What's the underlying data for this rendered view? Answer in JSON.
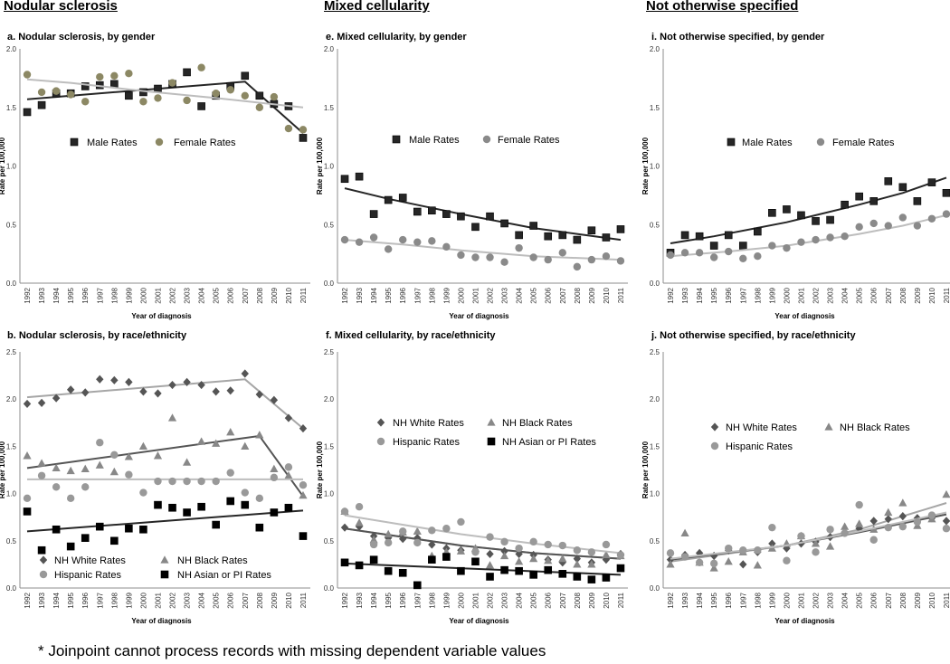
{
  "section_titles": [
    "Nodular sclerosis",
    "Mixed cellularity",
    "Not otherwise specified"
  ],
  "footnote": "* Joinpoint cannot process records with missing dependent variable values",
  "chart_data": [
    {
      "id": "a",
      "type": "scatter",
      "title": "a. Nodular sclerosis, by gender",
      "xlabel": "Year of diagnosis",
      "ylabel": "Rate per 100,000",
      "ylim": [
        0,
        2.0
      ],
      "yticks": [
        "0.0",
        "0.5",
        "1.0",
        "1.5",
        "2.0"
      ],
      "x": [
        1992,
        1993,
        1994,
        1995,
        1996,
        1997,
        1998,
        1999,
        2000,
        2001,
        2002,
        2003,
        2004,
        2005,
        2006,
        2007,
        2008,
        2009,
        2010,
        2011
      ],
      "series": [
        {
          "name": "Male Rates",
          "marker": "square",
          "color": "#262626",
          "values": [
            1.46,
            1.52,
            1.62,
            1.62,
            1.68,
            1.69,
            1.7,
            1.6,
            1.63,
            1.66,
            1.7,
            1.8,
            1.51,
            1.6,
            1.68,
            1.77,
            1.6,
            1.53,
            1.51,
            1.24
          ],
          "trend": [
            [
              1992,
              1.57
            ],
            [
              2007,
              1.72
            ],
            [
              2011,
              1.28
            ]
          ]
        },
        {
          "name": "Female Rates",
          "marker": "circle",
          "color": "#8c8864",
          "values": [
            1.78,
            1.63,
            1.64,
            1.61,
            1.55,
            1.76,
            1.77,
            1.79,
            1.55,
            1.58,
            1.71,
            1.56,
            1.84,
            1.62,
            1.65,
            1.6,
            1.5,
            1.59,
            1.32,
            1.31
          ],
          "trend": [
            [
              1992,
              1.74
            ],
            [
              1995,
              1.71
            ],
            [
              2000,
              1.64
            ],
            [
              2005,
              1.58
            ],
            [
              2011,
              1.5
            ]
          ]
        }
      ]
    },
    {
      "id": "b",
      "type": "scatter",
      "title": "b. Nodular sclerosis, by race/ethnicity",
      "xlabel": "Year of diagnosis",
      "ylabel": "Rate per 100,000",
      "ylim": [
        0,
        2.5
      ],
      "yticks": [
        "0.0",
        "0.5",
        "1.0",
        "1.5",
        "2.0",
        "2.5"
      ],
      "x": [
        1992,
        1993,
        1994,
        1995,
        1996,
        1997,
        1998,
        1999,
        2000,
        2001,
        2002,
        2003,
        2004,
        2005,
        2006,
        2007,
        2008,
        2009,
        2010,
        2011
      ],
      "series": [
        {
          "name": "NH White Rates",
          "marker": "diamond",
          "color": "#555555",
          "values": [
            1.95,
            1.96,
            2.01,
            2.1,
            2.07,
            2.21,
            2.2,
            2.18,
            2.08,
            2.06,
            2.15,
            2.18,
            2.15,
            2.08,
            2.09,
            2.27,
            2.05,
            1.99,
            1.8,
            1.69
          ],
          "trend": [
            [
              1992,
              2.02
            ],
            [
              2007,
              2.21
            ],
            [
              2011,
              1.69
            ]
          ]
        },
        {
          "name": "NH Black Rates",
          "marker": "triangle",
          "color": "#888888",
          "values": [
            1.4,
            1.32,
            1.27,
            1.24,
            1.26,
            1.3,
            1.23,
            1.39,
            1.5,
            1.4,
            1.8,
            1.33,
            1.55,
            1.53,
            1.65,
            1.5,
            1.62,
            1.26,
            1.19,
            0.98
          ],
          "trend": [
            [
              1992,
              1.27
            ],
            [
              2008,
              1.61
            ],
            [
              2011,
              0.97
            ]
          ]
        },
        {
          "name": "Hispanic Rates",
          "marker": "circle",
          "color": "#999999",
          "values": [
            0.95,
            1.19,
            1.07,
            0.95,
            1.07,
            1.54,
            1.41,
            1.2,
            1.01,
            1.13,
            1.13,
            1.13,
            1.13,
            1.13,
            1.22,
            1.01,
            0.95,
            1.17,
            1.28,
            1.09
          ],
          "trend": [
            [
              1992,
              1.15
            ],
            [
              2011,
              1.15
            ]
          ]
        },
        {
          "name": "NH Asian or PI Rates",
          "marker": "square",
          "color": "#000000",
          "values": [
            0.81,
            0.4,
            0.62,
            0.44,
            0.53,
            0.65,
            0.5,
            0.63,
            0.62,
            0.88,
            0.85,
            0.8,
            0.86,
            0.67,
            0.92,
            0.88,
            0.64,
            0.8,
            0.85,
            0.55
          ],
          "trend": [
            [
              1992,
              0.6
            ],
            [
              2011,
              0.82
            ]
          ]
        }
      ]
    },
    {
      "id": "e",
      "type": "scatter",
      "title": "e. Mixed cellularity, by gender",
      "xlabel": "Year of diagnosis",
      "ylabel": "Rate per 100,000",
      "ylim": [
        0,
        2.0
      ],
      "yticks": [
        "0.0",
        "0.5",
        "1.0",
        "1.5",
        "2.0"
      ],
      "x": [
        1992,
        1993,
        1994,
        1995,
        1996,
        1997,
        1998,
        1999,
        2000,
        2001,
        2002,
        2003,
        2004,
        2005,
        2006,
        2007,
        2008,
        2009,
        2010,
        2011
      ],
      "series": [
        {
          "name": "Male Rates",
          "marker": "square",
          "color": "#262626",
          "values": [
            0.89,
            0.91,
            0.59,
            0.71,
            0.73,
            0.61,
            0.62,
            0.59,
            0.57,
            0.48,
            0.57,
            0.51,
            0.41,
            0.49,
            0.4,
            0.41,
            0.37,
            0.45,
            0.39,
            0.46
          ],
          "trend": [
            [
              1992,
              0.81
            ],
            [
              1995,
              0.72
            ],
            [
              2000,
              0.59
            ],
            [
              2005,
              0.47
            ],
            [
              2008,
              0.42
            ],
            [
              2011,
              0.37
            ]
          ]
        },
        {
          "name": "Female Rates",
          "marker": "circle",
          "color": "#8a8a8a",
          "values": [
            0.37,
            0.35,
            0.39,
            0.29,
            0.37,
            0.35,
            0.36,
            0.31,
            0.24,
            0.22,
            0.22,
            0.18,
            0.3,
            0.22,
            0.2,
            0.26,
            0.14,
            0.2,
            0.23,
            0.19
          ],
          "trend": [
            [
              1992,
              0.37
            ],
            [
              1996,
              0.33
            ],
            [
              2000,
              0.28
            ],
            [
              2005,
              0.23
            ],
            [
              2011,
              0.2
            ]
          ]
        }
      ]
    },
    {
      "id": "f",
      "type": "scatter",
      "title": "f. Mixed cellularity, by race/ethnicity",
      "xlabel": "Year of diagnosis",
      "ylabel": "Rate per 100,000",
      "ylim": [
        0,
        2.5
      ],
      "yticks": [
        "0.0",
        "0.5",
        "1.0",
        "1.5",
        "2.0",
        "2.5"
      ],
      "x": [
        1992,
        1993,
        1994,
        1995,
        1996,
        1997,
        1998,
        1999,
        2000,
        2001,
        2002,
        2003,
        2004,
        2005,
        2006,
        2007,
        2008,
        2009,
        2010,
        2011
      ],
      "series": [
        {
          "name": "NH White Rates",
          "marker": "diamond",
          "color": "#555555",
          "values": [
            0.64,
            0.65,
            0.55,
            0.53,
            0.52,
            0.53,
            0.46,
            0.42,
            0.4,
            0.39,
            0.36,
            0.39,
            0.36,
            0.35,
            0.3,
            0.27,
            0.31,
            0.27,
            0.3,
            0.36
          ],
          "trend": [
            [
              1992,
              0.63
            ],
            [
              2000,
              0.45
            ],
            [
              2005,
              0.37
            ],
            [
              2011,
              0.31
            ]
          ]
        },
        {
          "name": "NH Black Rates",
          "marker": "triangle",
          "color": "#888888",
          "values": [
            0.81,
            0.69,
            0.51,
            0.57,
            0.59,
            0.6,
            0.34,
            0.38,
            0.39,
            0.42,
            0.24,
            0.34,
            0.28,
            0.31,
            0.29,
            0.31,
            0.25,
            0.25,
            0.35,
            0.34
          ],
          "trend": [
            [
              1992,
              0.63
            ],
            [
              2000,
              0.45
            ],
            [
              2005,
              0.37
            ],
            [
              2011,
              0.31
            ]
          ]
        },
        {
          "name": "Hispanic Rates",
          "marker": "circle",
          "color": "#999999",
          "values": [
            0.81,
            0.86,
            0.46,
            0.48,
            0.6,
            0.48,
            0.61,
            0.63,
            0.7,
            0.38,
            0.54,
            0.49,
            0.42,
            0.49,
            0.46,
            0.45,
            0.4,
            0.38,
            0.46,
            0.35
          ],
          "trend": [
            [
              1992,
              0.77
            ],
            [
              2000,
              0.57
            ],
            [
              2005,
              0.47
            ],
            [
              2011,
              0.37
            ]
          ]
        },
        {
          "name": "NH Asian or PI Rates",
          "marker": "square",
          "color": "#000000",
          "values": [
            0.27,
            0.24,
            0.3,
            0.18,
            0.16,
            0.03,
            0.3,
            0.33,
            0.18,
            0.28,
            0.12,
            0.19,
            0.18,
            0.14,
            0.19,
            0.15,
            0.12,
            0.09,
            0.11,
            0.21
          ],
          "trend": [
            [
              1992,
              0.26
            ],
            [
              2011,
              0.14
            ]
          ]
        }
      ]
    },
    {
      "id": "i",
      "type": "scatter",
      "title": "i. Not otherwise specified, by gender",
      "xlabel": "Year of diagnosis",
      "ylabel": "Rate per 100,000",
      "ylim": [
        0,
        2.0
      ],
      "yticks": [
        "0.0",
        "0.5",
        "1.0",
        "1.5",
        "2.0"
      ],
      "x": [
        1992,
        1993,
        1994,
        1995,
        1996,
        1997,
        1998,
        1999,
        2000,
        2001,
        2002,
        2003,
        2004,
        2005,
        2006,
        2007,
        2008,
        2009,
        2010,
        2011
      ],
      "series": [
        {
          "name": "Male Rates",
          "marker": "square",
          "color": "#262626",
          "values": [
            0.26,
            0.41,
            0.4,
            0.32,
            0.41,
            0.32,
            0.44,
            0.6,
            0.63,
            0.58,
            0.53,
            0.54,
            0.67,
            0.74,
            0.7,
            0.87,
            0.82,
            0.7,
            0.86,
            0.77
          ],
          "trend": [
            [
              1992,
              0.34
            ],
            [
              1995,
              0.4
            ],
            [
              2000,
              0.52
            ],
            [
              2005,
              0.67
            ],
            [
              2008,
              0.77
            ],
            [
              2011,
              0.9
            ]
          ]
        },
        {
          "name": "Female Rates",
          "marker": "circle",
          "color": "#8a8a8a",
          "values": [
            0.24,
            0.26,
            0.26,
            0.22,
            0.27,
            0.21,
            0.23,
            0.32,
            0.3,
            0.35,
            0.37,
            0.39,
            0.4,
            0.48,
            0.51,
            0.49,
            0.56,
            0.49,
            0.55,
            0.59
          ],
          "trend": [
            [
              1992,
              0.23
            ],
            [
              1996,
              0.27
            ],
            [
              2000,
              0.32
            ],
            [
              2005,
              0.42
            ],
            [
              2008,
              0.49
            ],
            [
              2011,
              0.58
            ]
          ]
        }
      ]
    },
    {
      "id": "j",
      "type": "scatter",
      "title": "j. Not otherwise specified, by race/ethnicity",
      "xlabel": "Year of diagnosis",
      "ylabel": "Rate per 100,000",
      "ylim": [
        0,
        2.5
      ],
      "yticks": [
        "0.0",
        "0.5",
        "1.0",
        "1.5",
        "2.0",
        "2.5"
      ],
      "x": [
        1992,
        1993,
        1994,
        1995,
        1996,
        1997,
        1998,
        1999,
        2000,
        2001,
        2002,
        2003,
        2004,
        2005,
        2006,
        2007,
        2008,
        2009,
        2010,
        2011
      ],
      "series": [
        {
          "name": "NH White Rates",
          "marker": "diamond",
          "color": "#555555",
          "values": [
            0.3,
            0.35,
            0.37,
            0.34,
            0.4,
            0.25,
            0.38,
            0.47,
            0.42,
            0.47,
            0.49,
            0.54,
            0.59,
            0.63,
            0.71,
            0.73,
            0.76,
            0.74,
            0.74,
            0.71
          ],
          "trend": [
            [
              1992,
              0.28
            ],
            [
              2000,
              0.45
            ],
            [
              2005,
              0.62
            ],
            [
              2011,
              0.9
            ]
          ]
        },
        {
          "name": "NH Black Rates",
          "marker": "triangle",
          "color": "#888888",
          "values": [
            0.25,
            0.58,
            0.27,
            0.21,
            0.28,
            0.38,
            0.24,
            0.42,
            0.47,
            0.55,
            0.47,
            0.44,
            0.65,
            0.68,
            0.62,
            0.8,
            0.9,
            0.66,
            0.73,
            0.99
          ],
          "trend": [
            [
              1992,
              0.3
            ],
            [
              2000,
              0.45
            ],
            [
              2005,
              0.59
            ],
            [
              2011,
              0.78
            ]
          ]
        },
        {
          "name": "Hispanic Rates",
          "marker": "circle",
          "color": "#999999",
          "values": [
            0.37,
            0.33,
            0.27,
            0.26,
            0.42,
            0.4,
            0.4,
            0.64,
            0.29,
            0.55,
            0.38,
            0.62,
            0.58,
            0.88,
            0.51,
            0.64,
            0.65,
            0.7,
            0.77,
            0.63
          ],
          "trend": [
            [
              1992,
              0.31
            ],
            [
              2000,
              0.45
            ],
            [
              2005,
              0.6
            ],
            [
              2011,
              0.8
            ]
          ]
        }
      ]
    }
  ]
}
